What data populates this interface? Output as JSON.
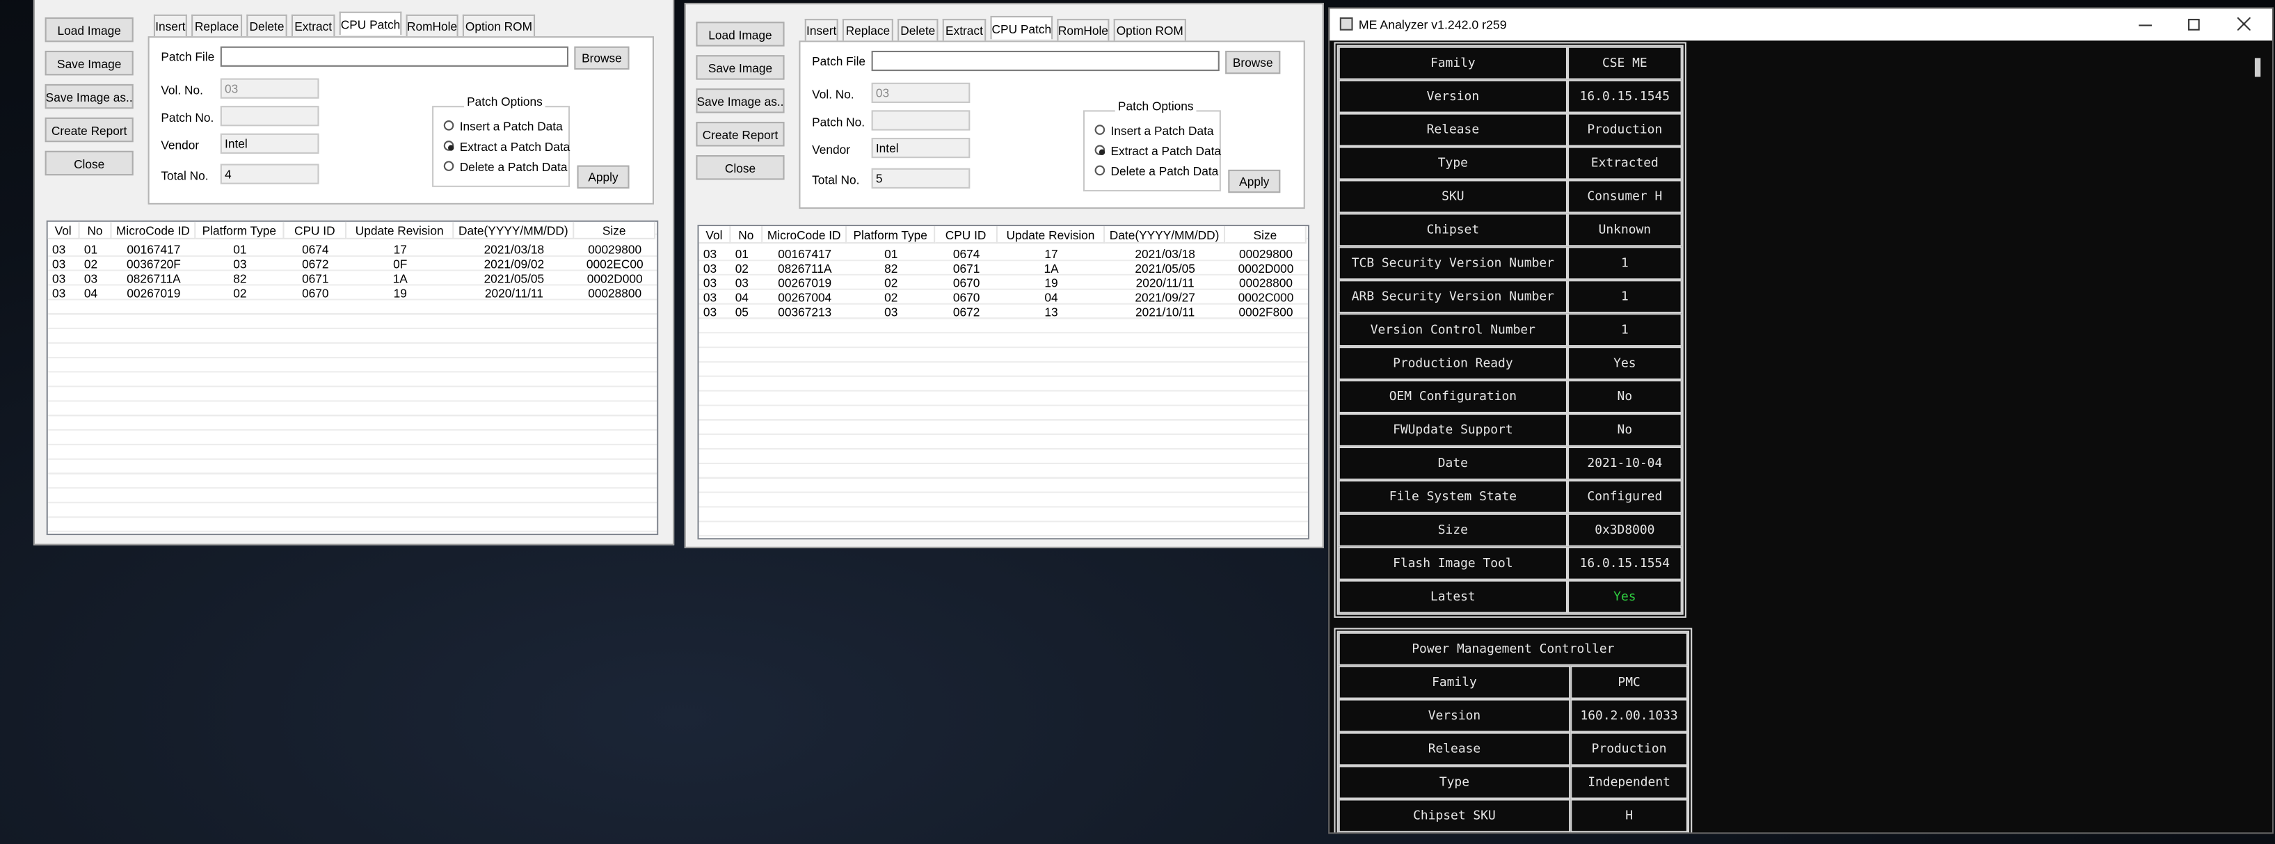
{
  "windows": [
    {
      "buttons": [
        "Load Image",
        "Save Image",
        "Save Image as..",
        "Create Report",
        "Close"
      ],
      "tabs": [
        "Insert",
        "Replace",
        "Delete",
        "Extract",
        "CPU Patch",
        "RomHole",
        "Option ROM"
      ],
      "form": {
        "patch_file": "Patch File",
        "browse": "Browse",
        "vol_no": "Vol. No.",
        "vol_no_value": "03",
        "patch_no": "Patch No.",
        "vendor": "Vendor",
        "vendor_value": "Intel",
        "total_no": "Total No.",
        "total_no_value": "4",
        "patch_options": "Patch Options",
        "options": [
          "Insert a Patch Data",
          "Extract a Patch Data",
          "Delete a Patch Data"
        ],
        "apply": "Apply"
      },
      "table": {
        "headers": [
          "Vol",
          "No",
          "MicroCode ID",
          "Platform Type",
          "CPU ID",
          "Update Revision",
          "Date(YYYY/MM/DD)",
          "Size"
        ],
        "rows": [
          [
            "03",
            "01",
            "00167417",
            "01",
            "0674",
            "17",
            "2021/03/18",
            "00029800"
          ],
          [
            "03",
            "02",
            "0036720F",
            "03",
            "0672",
            "0F",
            "2021/09/02",
            "0002EC00"
          ],
          [
            "03",
            "03",
            "0826711A",
            "82",
            "0671",
            "1A",
            "2021/05/05",
            "0002D000"
          ],
          [
            "03",
            "04",
            "00267019",
            "02",
            "0670",
            "19",
            "2020/11/11",
            "00028800"
          ]
        ]
      }
    },
    {
      "buttons": [
        "Load Image",
        "Save Image",
        "Save Image as..",
        "Create Report",
        "Close"
      ],
      "tabs": [
        "Insert",
        "Replace",
        "Delete",
        "Extract",
        "CPU Patch",
        "RomHole",
        "Option ROM"
      ],
      "form": {
        "patch_file": "Patch File",
        "browse": "Browse",
        "vol_no": "Vol. No.",
        "vol_no_value": "03",
        "patch_no": "Patch No.",
        "vendor": "Vendor",
        "vendor_value": "Intel",
        "total_no": "Total No.",
        "total_no_value": "5",
        "patch_options": "Patch Options",
        "options": [
          "Insert a Patch Data",
          "Extract a Patch Data",
          "Delete a Patch Data"
        ],
        "apply": "Apply"
      },
      "table": {
        "headers": [
          "Vol",
          "No",
          "MicroCode ID",
          "Platform Type",
          "CPU ID",
          "Update Revision",
          "Date(YYYY/MM/DD)",
          "Size"
        ],
        "rows": [
          [
            "03",
            "01",
            "00167417",
            "01",
            "0674",
            "17",
            "2021/03/18",
            "00029800"
          ],
          [
            "03",
            "02",
            "0826711A",
            "82",
            "0671",
            "1A",
            "2021/05/05",
            "0002D000"
          ],
          [
            "03",
            "03",
            "00267019",
            "02",
            "0670",
            "19",
            "2020/11/11",
            "00028800"
          ],
          [
            "03",
            "04",
            "00267004",
            "02",
            "0670",
            "04",
            "2021/09/27",
            "0002C000"
          ],
          [
            "03",
            "05",
            "00367213",
            "03",
            "0672",
            "13",
            "2021/10/11",
            "0002F800"
          ]
        ]
      }
    }
  ],
  "me_analyzer": {
    "title": "ME Analyzer v1.242.0 r259",
    "tables": [
      {
        "rows": [
          [
            "Family",
            "CSE ME"
          ],
          [
            "Version",
            "16.0.15.1545"
          ],
          [
            "Release",
            "Production"
          ],
          [
            "Type",
            "Extracted"
          ],
          [
            "SKU",
            "Consumer H"
          ],
          [
            "Chipset",
            "Unknown"
          ],
          [
            "TCB Security Version Number",
            "1"
          ],
          [
            "ARB Security Version Number",
            "1"
          ],
          [
            "Version Control Number",
            "1"
          ],
          [
            "Production Ready",
            "Yes"
          ],
          [
            "OEM Configuration",
            "No"
          ],
          [
            "FWUpdate Support",
            "No"
          ],
          [
            "Date",
            "2021-10-04"
          ],
          [
            "File System State",
            "Configured"
          ],
          [
            "Size",
            "0x3D8000"
          ],
          [
            "Flash Image Tool",
            "16.0.15.1554"
          ],
          [
            "Latest",
            "Yes"
          ]
        ]
      },
      {
        "title": "Power Management Controller",
        "rows": [
          [
            "Family",
            "PMC"
          ],
          [
            "Version",
            "160.2.00.1033"
          ],
          [
            "Release",
            "Production"
          ],
          [
            "Type",
            "Independent"
          ],
          [
            "Chipset SKU",
            "H"
          ]
        ]
      }
    ]
  }
}
